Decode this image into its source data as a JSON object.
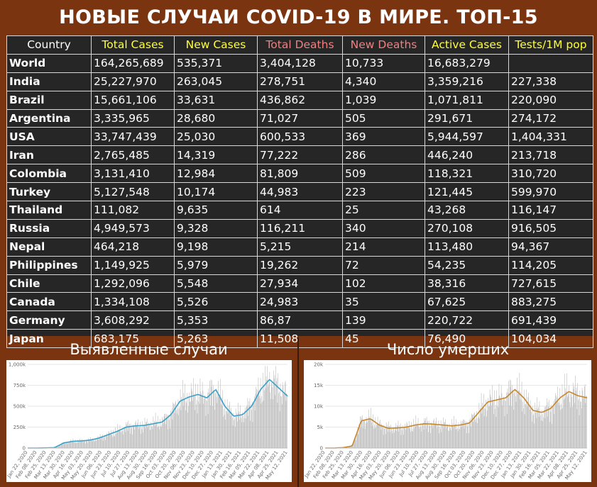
{
  "title": "НОВЫЕ СЛУЧАИ COVID-19 В МИРЕ. ТОП-15",
  "colors": {
    "background": "#7a3410",
    "header_yellow": "#ffff3a",
    "header_red": "#f08080",
    "table_bg": "#262626",
    "line_cases": "#3aa0c8",
    "line_deaths": "#c8862a",
    "bars": "#b8b8b8"
  },
  "table": {
    "headers": [
      "Country",
      "Total Cases",
      "New Cases",
      "Total Deaths",
      "New Deaths",
      "Active Cases",
      "Tests/1M pop"
    ],
    "rows": [
      [
        "World",
        "164,265,689",
        "535,371",
        "3,404,128",
        "10,733",
        "16,683,279",
        ""
      ],
      [
        "India",
        "25,227,970",
        "263,045",
        "278,751",
        "4,340",
        "3,359,216",
        "227,338"
      ],
      [
        "Brazil",
        "15,661,106",
        "33,631",
        "436,862",
        "1,039",
        "1,071,811",
        "220,090"
      ],
      [
        "Argentina",
        "3,335,965",
        "28,680",
        "71,027",
        "505",
        "291,671",
        "274,172"
      ],
      [
        "USA",
        "33,747,439",
        "25,030",
        "600,533",
        "369",
        "5,944,597",
        "1,404,331"
      ],
      [
        "Iran",
        "2,765,485",
        "14,319",
        "77,222",
        "286",
        "446,240",
        "213,718"
      ],
      [
        "Colombia",
        "3,131,410",
        "12,984",
        "81,809",
        "509",
        "118,321",
        "310,720"
      ],
      [
        "Turkey",
        "5,127,548",
        "10,174",
        "44,983",
        "223",
        "121,445",
        "599,970"
      ],
      [
        "Thailand",
        "111,082",
        "9,635",
        "614",
        "25",
        "43,268",
        "116,147"
      ],
      [
        "Russia",
        "4,949,573",
        "9,328",
        "116,211",
        "340",
        "270,108",
        "916,505"
      ],
      [
        "Nepal",
        "464,218",
        "9,198",
        "5,215",
        "214",
        "113,480",
        "94,367"
      ],
      [
        "Philippines",
        "1,149,925",
        "5,979",
        "19,262",
        "72",
        "54,235",
        "114,205"
      ],
      [
        "Chile",
        "1,292,096",
        "5,548",
        "27,934",
        "102",
        "38,316",
        "727,615"
      ],
      [
        "Canada",
        "1,334,108",
        "5,526",
        "24,983",
        "35",
        "67,625",
        "883,275"
      ],
      [
        "Germany",
        "3,608,292",
        "5,353",
        "86,87",
        "139",
        "220,722",
        "691,439"
      ],
      [
        "Japan",
        "683,175",
        "5,263",
        "11,508",
        "45",
        "76,490",
        "104,034"
      ]
    ]
  },
  "chart_data": [
    {
      "type": "bar",
      "title": "Выявленные случаи",
      "y_ticks": [
        "0",
        "250k",
        "500k",
        "750k",
        "1,000k"
      ],
      "ylim": [
        0,
        1000000
      ],
      "x_ticks": [
        "Jan 22, 2020",
        "Feb 08, 2020",
        "Feb 25, 2020",
        "Mar 13, 2020",
        "Mar 30, 2020",
        "Apr 16, 2020",
        "May 03, 2020",
        "May 20, 2020",
        "Jun 06, 2020",
        "Jun 23, 2020",
        "Jul 10, 2020",
        "Jul 27, 2020",
        "Aug 13, 2020",
        "Aug 30, 2020",
        "Sep 16, 2020",
        "Oct 03, 2020",
        "Oct 20, 2020",
        "Nov 06, 2020",
        "Nov 23, 2020",
        "Dec 10, 2020",
        "Dec 27, 2020",
        "Jan 13, 2021",
        "Jan 30, 2021",
        "Feb 16, 2021",
        "Mar 05, 2021",
        "Mar 22, 2021",
        "Apr 08, 2021",
        "Apr 25, 2021",
        "May 12, 2021"
      ],
      "trend": [
        0,
        0,
        2000,
        5000,
        60000,
        80000,
        85000,
        95000,
        120000,
        160000,
        200000,
        250000,
        265000,
        270000,
        290000,
        310000,
        400000,
        560000,
        610000,
        640000,
        600000,
        700000,
        500000,
        380000,
        400000,
        500000,
        700000,
        820000,
        720000,
        620000
      ],
      "grid": true
    },
    {
      "type": "bar",
      "title": "Число умерших",
      "y_ticks": [
        "0",
        "5k",
        "10k",
        "15k",
        "20k"
      ],
      "ylim": [
        0,
        20000
      ],
      "x_ticks": [
        "Jan 22, 2020",
        "Feb 08, 2020",
        "Feb 25, 2020",
        "Mar 13, 2020",
        "Mar 30, 2020",
        "Apr 16, 2020",
        "May 03, 2020",
        "May 20, 2020",
        "Jun 06, 2020",
        "Jun 23, 2020",
        "Jul 10, 2020",
        "Jul 27, 2020",
        "Aug 13, 2020",
        "Aug 30, 2020",
        "Sep 16, 2020",
        "Oct 03, 2020",
        "Oct 20, 2020",
        "Nov 06, 2020",
        "Nov 23, 2020",
        "Dec 10, 2020",
        "Dec 27, 2020",
        "Jan 13, 2021",
        "Jan 30, 2021",
        "Feb 16, 2021",
        "Mar 05, 2021",
        "Mar 22, 2021",
        "Apr 08, 2021",
        "Apr 25, 2021",
        "May 12, 2021"
      ],
      "trend": [
        0,
        0,
        100,
        500,
        6500,
        7000,
        5500,
        4700,
        4800,
        5000,
        5500,
        5800,
        5700,
        5500,
        5300,
        5500,
        6000,
        8500,
        11000,
        11500,
        12000,
        14000,
        12000,
        9000,
        8500,
        9500,
        12000,
        13500,
        12500,
        12000
      ],
      "grid": true
    }
  ]
}
